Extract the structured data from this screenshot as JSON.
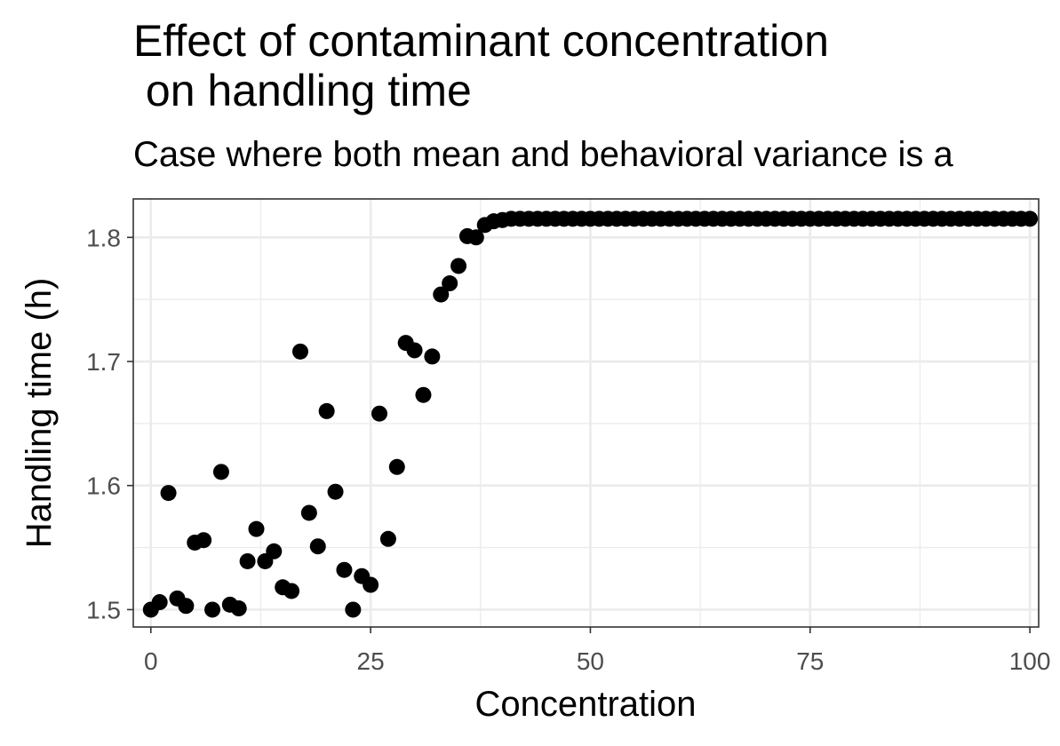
{
  "chart_data": {
    "type": "scatter",
    "title": "Effect of contaminant concentration\n on handling time",
    "subtitle": "Case where both mean and behavioral variance is a",
    "xlabel": "Concentration",
    "ylabel": "Handling time (h)",
    "xlim": [
      -2,
      101
    ],
    "ylim": [
      1.486,
      1.831
    ],
    "x_ticks": [
      0,
      25,
      50,
      75,
      100
    ],
    "x_tick_labels": [
      "0",
      "25",
      "50",
      "75",
      "100"
    ],
    "y_ticks": [
      1.5,
      1.6,
      1.7,
      1.8
    ],
    "y_tick_labels": [
      "1.5",
      "1.6",
      "1.7",
      "1.8"
    ],
    "grid": true,
    "theme": "bw",
    "point_color": "#000000",
    "series": [
      {
        "x": [
          0,
          1,
          2,
          3,
          4,
          5,
          6,
          7,
          8,
          9,
          10,
          11,
          12,
          13,
          14,
          15,
          16,
          17,
          18,
          19,
          20,
          21,
          22,
          23,
          24,
          25,
          26,
          27,
          28,
          29,
          30,
          31,
          32,
          33,
          34,
          35,
          36,
          37,
          38,
          39,
          40,
          41,
          42,
          43,
          44,
          45,
          46,
          47,
          48,
          49,
          50,
          51,
          52,
          53,
          54,
          55,
          56,
          57,
          58,
          59,
          60,
          61,
          62,
          63,
          64,
          65,
          66,
          67,
          68,
          69,
          70,
          71,
          72,
          73,
          74,
          75,
          76,
          77,
          78,
          79,
          80,
          81,
          82,
          83,
          84,
          85,
          86,
          87,
          88,
          89,
          90,
          91,
          92,
          93,
          94,
          95,
          96,
          97,
          98,
          99,
          100
        ],
        "y": [
          1.5,
          1.506,
          1.594,
          1.509,
          1.503,
          1.554,
          1.556,
          1.5,
          1.611,
          1.504,
          1.501,
          1.539,
          1.565,
          1.539,
          1.547,
          1.518,
          1.515,
          1.708,
          1.578,
          1.551,
          1.66,
          1.595,
          1.532,
          1.5,
          1.527,
          1.52,
          1.658,
          1.557,
          1.615,
          1.715,
          1.709,
          1.673,
          1.704,
          1.754,
          1.763,
          1.777,
          1.801,
          1.8,
          1.81,
          1.813,
          1.814,
          1.815,
          1.815,
          1.815,
          1.815,
          1.815,
          1.815,
          1.815,
          1.815,
          1.815,
          1.815,
          1.815,
          1.815,
          1.815,
          1.815,
          1.815,
          1.815,
          1.815,
          1.815,
          1.815,
          1.815,
          1.815,
          1.815,
          1.815,
          1.815,
          1.815,
          1.815,
          1.815,
          1.815,
          1.815,
          1.815,
          1.815,
          1.815,
          1.815,
          1.815,
          1.815,
          1.815,
          1.815,
          1.815,
          1.815,
          1.815,
          1.815,
          1.815,
          1.815,
          1.815,
          1.815,
          1.815,
          1.815,
          1.815,
          1.815,
          1.815,
          1.815,
          1.815,
          1.815,
          1.815,
          1.815,
          1.815,
          1.815,
          1.815,
          1.815,
          1.815
        ]
      }
    ]
  }
}
